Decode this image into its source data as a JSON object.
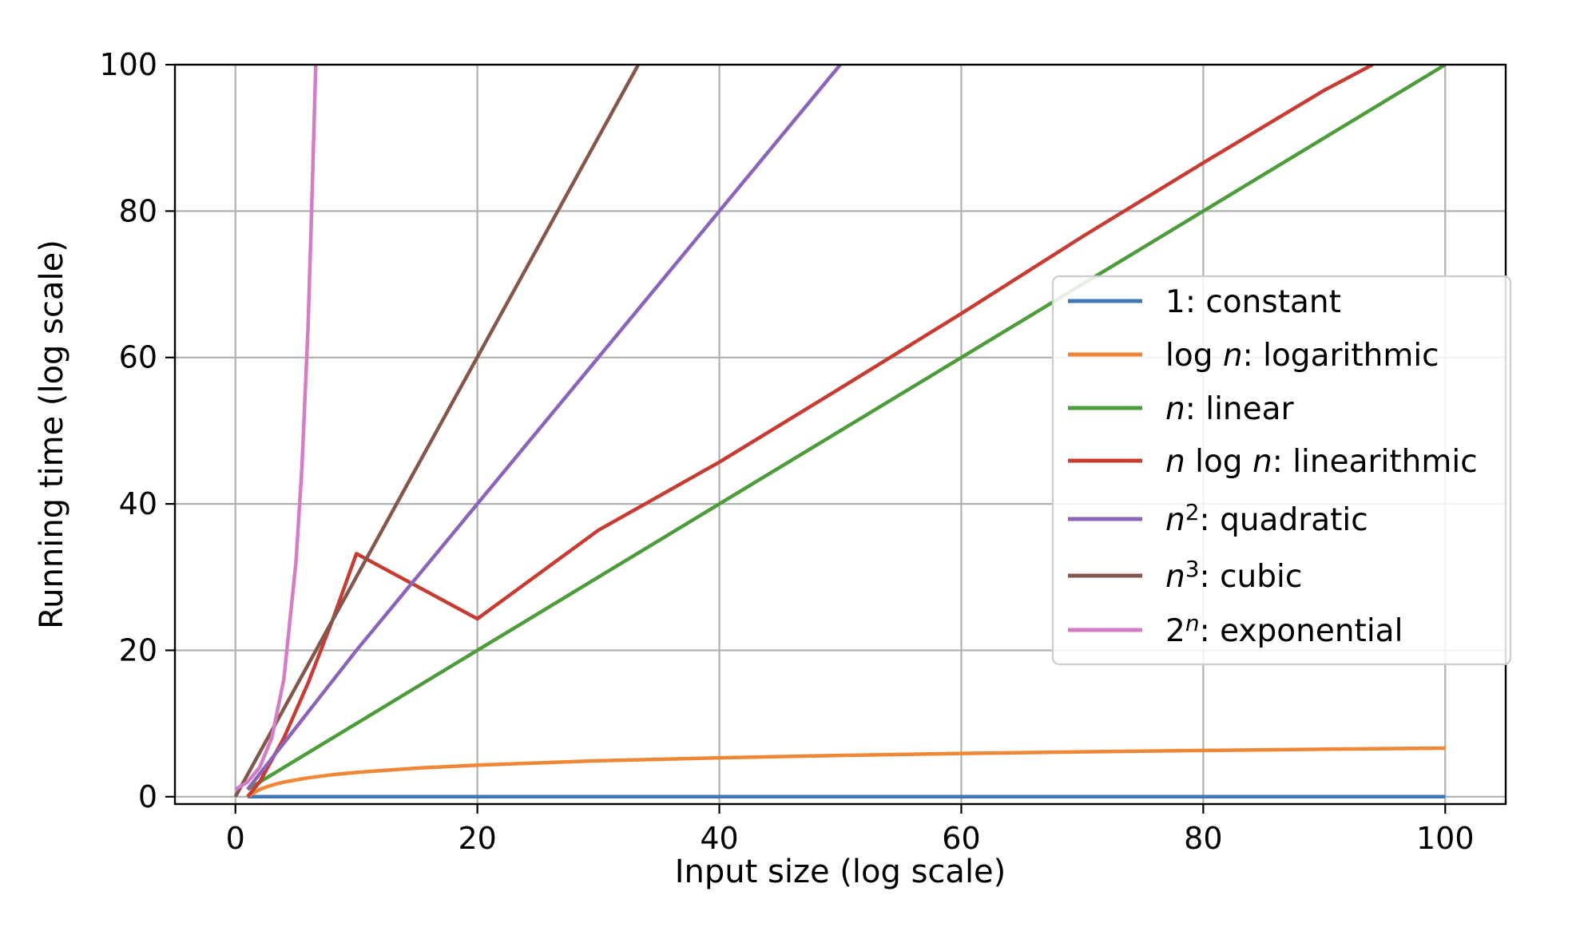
{
  "chart_data": {
    "type": "line",
    "title": "",
    "xlabel": "Input size (log scale)",
    "ylabel": "Running time (log scale)",
    "xlim": [
      -5,
      105
    ],
    "ylim": [
      -1,
      100
    ],
    "x_ticks": [
      0,
      20,
      40,
      60,
      80,
      100
    ],
    "y_ticks": [
      0,
      20,
      40,
      60,
      80,
      100
    ],
    "grid": true,
    "legend_position": "center-right",
    "series": [
      {
        "name": "1: constant",
        "name_parts": [
          {
            "t": "1: constant",
            "s": ""
          }
        ],
        "color": "#3f78b5",
        "x": [
          1,
          100
        ],
        "y": [
          0,
          0
        ]
      },
      {
        "name": "log n: logarithmic",
        "name_parts": [
          {
            "t": "log ",
            "s": ""
          },
          {
            "t": "n",
            "s": "it"
          },
          {
            "t": ": logarithmic",
            "s": ""
          }
        ],
        "color": "#f08736",
        "x": [
          1,
          2,
          3,
          4,
          6,
          8,
          10,
          15,
          20,
          30,
          40,
          50,
          60,
          70,
          80,
          90,
          100
        ],
        "y": [
          0,
          1.0,
          1.58,
          2.0,
          2.58,
          3.0,
          3.32,
          3.91,
          4.32,
          4.91,
          5.32,
          5.64,
          5.91,
          6.13,
          6.32,
          6.49,
          6.64
        ]
      },
      {
        "name": "n: linear",
        "name_parts": [
          {
            "t": "n",
            "s": "it"
          },
          {
            "t": ": linear",
            "s": ""
          }
        ],
        "color": "#4d9c3b",
        "x": [
          1,
          100
        ],
        "y": [
          1,
          100
        ]
      },
      {
        "name": "n log n: linearithmic",
        "name_parts": [
          {
            "t": "n",
            "s": "it"
          },
          {
            "t": " log ",
            "s": ""
          },
          {
            "t": "n",
            "s": "it"
          },
          {
            "t": ": linearithmic",
            "s": ""
          }
        ],
        "color": "#c83b32",
        "x": [
          1,
          2,
          4,
          6,
          8,
          10,
          20,
          30,
          40,
          50,
          60,
          70,
          80,
          90,
          94
        ],
        "y": [
          0,
          2,
          8,
          15.5,
          24,
          33.2,
          24.3,
          36.4,
          45.7,
          55.8,
          66,
          76.5,
          86.6,
          96.5,
          100
        ]
      },
      {
        "name": "n²: quadratic",
        "name_parts": [
          {
            "t": "n",
            "s": "it"
          },
          {
            "t": "2",
            "s": "sup"
          },
          {
            "t": ": quadratic",
            "s": ""
          }
        ],
        "color": "#8a64b8",
        "x": [
          1,
          10,
          20,
          30,
          40,
          50
        ],
        "y": [
          1,
          20,
          40,
          60,
          80,
          100
        ]
      },
      {
        "name": "n³: cubic",
        "name_parts": [
          {
            "t": "n",
            "s": "it"
          },
          {
            "t": "3",
            "s": "sup"
          },
          {
            "t": ": cubic",
            "s": ""
          }
        ],
        "color": "#85574c",
        "x": [
          0,
          33.3
        ],
        "y": [
          0,
          100
        ]
      },
      {
        "name": "2ⁿ: exponential",
        "name_parts": [
          {
            "t": "2",
            "s": ""
          },
          {
            "t": "n",
            "s": "supit"
          },
          {
            "t": ": exponential",
            "s": ""
          }
        ],
        "color": "#d47cc4",
        "x": [
          0,
          1,
          2,
          3,
          4,
          5,
          5.5,
          6,
          6.3,
          6.64
        ],
        "y": [
          1,
          2,
          4,
          8,
          16,
          32,
          45,
          64,
          80,
          100
        ]
      }
    ]
  }
}
